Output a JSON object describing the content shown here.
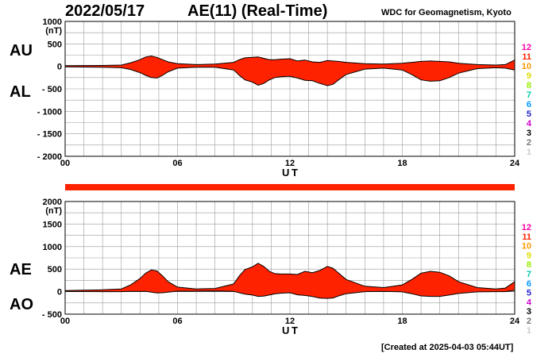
{
  "header": {
    "date": "2022/05/17",
    "title": "AE(11) (Real-Time)",
    "source": "WDC for Geomagnetism, Kyoto",
    "created": "[Created at 2025-04-03 05:44UT]"
  },
  "colors": {
    "fill": "#ff2200",
    "outline": "#000000",
    "grid": "#9a9a9a"
  },
  "chart_data": [
    {
      "type": "area",
      "panel": "AU/AL",
      "series_labels": [
        "AU",
        "AL"
      ],
      "xlabel": "U T",
      "xlim": [
        0,
        24
      ],
      "x_ticks": [
        "00",
        "06",
        "12",
        "18",
        "24"
      ],
      "ylim": [
        -2000,
        1000
      ],
      "y_ticks": [
        1000,
        500,
        0,
        -500,
        -1000,
        -1500,
        -2000
      ],
      "y_tick_labels": [
        "1000",
        "500",
        "0",
        "- 500",
        "- 1000",
        "- 1500",
        "- 2000"
      ],
      "y_unit": "(nT)",
      "x": [
        0,
        1,
        2,
        3,
        3.5,
        4,
        4.3,
        4.6,
        4.9,
        5.2,
        5.5,
        6,
        7,
        8,
        9,
        9.3,
        9.6,
        10,
        10.3,
        10.6,
        10.9,
        11.2,
        11.5,
        12,
        12.4,
        12.8,
        13.2,
        13.6,
        14,
        14.3,
        14.6,
        15,
        16,
        17,
        18,
        18.5,
        19,
        19.5,
        20,
        20.5,
        21,
        22,
        23,
        23.5,
        24
      ],
      "au": [
        15,
        18,
        20,
        30,
        80,
        150,
        210,
        230,
        200,
        150,
        100,
        60,
        40,
        50,
        90,
        150,
        190,
        200,
        210,
        180,
        150,
        150,
        160,
        170,
        120,
        140,
        100,
        90,
        130,
        120,
        110,
        90,
        60,
        50,
        70,
        90,
        110,
        120,
        110,
        100,
        70,
        40,
        30,
        40,
        140
      ],
      "al": [
        -10,
        -15,
        -20,
        -30,
        -70,
        -140,
        -200,
        -250,
        -260,
        -200,
        -120,
        -40,
        -20,
        -20,
        -80,
        -200,
        -300,
        -350,
        -420,
        -380,
        -300,
        -250,
        -230,
        -220,
        -260,
        -310,
        -320,
        -380,
        -430,
        -400,
        -300,
        -180,
        -60,
        -40,
        -80,
        -180,
        -300,
        -330,
        -320,
        -250,
        -150,
        -50,
        -30,
        -40,
        -80
      ]
    },
    {
      "type": "area",
      "panel": "AE/AO",
      "series_labels": [
        "AE",
        "AO"
      ],
      "xlabel": "U T",
      "xlim": [
        0,
        24
      ],
      "x_ticks": [
        "00",
        "06",
        "12",
        "18",
        "24"
      ],
      "ylim": [
        -500,
        2000
      ],
      "y_ticks": [
        2000,
        1500,
        1000,
        500,
        0,
        -500
      ],
      "y_tick_labels": [
        "2000",
        "1500",
        "1000",
        "500",
        "0",
        "- 500"
      ],
      "y_unit": "(nT)",
      "x": [
        0,
        1,
        2,
        3,
        3.5,
        4,
        4.3,
        4.6,
        4.9,
        5.2,
        5.5,
        6,
        7,
        8,
        9,
        9.3,
        9.6,
        10,
        10.3,
        10.6,
        10.9,
        11.2,
        11.5,
        12,
        12.4,
        12.8,
        13.2,
        13.6,
        14,
        14.3,
        14.6,
        15,
        16,
        17,
        18,
        18.5,
        19,
        19.5,
        20,
        20.5,
        21,
        22,
        23,
        23.5,
        24
      ],
      "ae": [
        25,
        33,
        40,
        60,
        150,
        290,
        410,
        480,
        460,
        350,
        220,
        100,
        60,
        70,
        170,
        350,
        490,
        550,
        630,
        560,
        450,
        400,
        390,
        390,
        380,
        450,
        420,
        470,
        560,
        520,
        410,
        270,
        120,
        90,
        150,
        270,
        410,
        450,
        430,
        350,
        220,
        90,
        60,
        80,
        220
      ],
      "ao": [
        3,
        2,
        0,
        0,
        5,
        5,
        5,
        -10,
        -30,
        -25,
        -10,
        10,
        10,
        15,
        5,
        -25,
        -55,
        -75,
        -105,
        -100,
        -75,
        -50,
        -35,
        -25,
        -70,
        -85,
        -110,
        -145,
        -150,
        -140,
        -95,
        -45,
        0,
        5,
        -5,
        -45,
        -95,
        -105,
        -105,
        -75,
        -40,
        -5,
        0,
        0,
        30
      ]
    }
  ],
  "kp_scale": {
    "labels": [
      "12",
      "11",
      "10",
      "9",
      "8",
      "7",
      "6",
      "5",
      "4",
      "3",
      "2",
      "1"
    ],
    "colors": [
      "#ff00aa",
      "#ff2200",
      "#ff9900",
      "#dddd00",
      "#99ee00",
      "#00ccaa",
      "#0099ff",
      "#2222cc",
      "#cc00cc",
      "#000000",
      "#777777",
      "#cccccc"
    ]
  }
}
